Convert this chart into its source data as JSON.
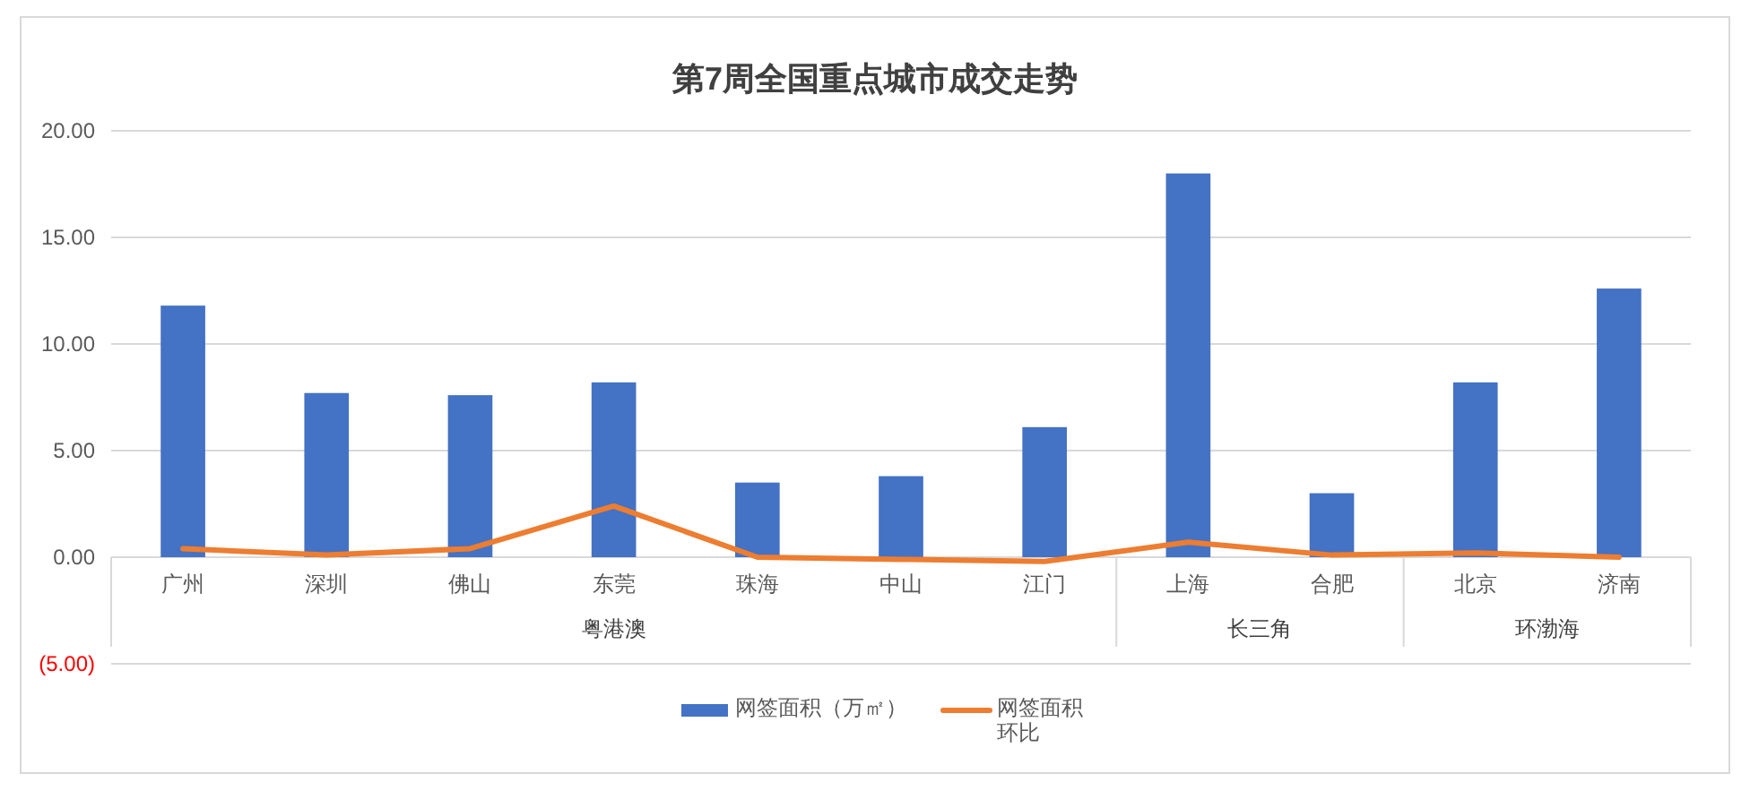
{
  "chart_data": {
    "type": "bar",
    "title": "第7周全国重点城市成交走势",
    "categories": [
      "广州",
      "深圳",
      "佛山",
      "东莞",
      "珠海",
      "中山",
      "江门",
      "上海",
      "合肥",
      "北京",
      "济南"
    ],
    "annotations": [
      "粤港澳",
      "长三角",
      "环渤海"
    ],
    "ref_lines": [
      {
        "axis": "x",
        "value": "上海",
        "color": "#d9d9d9"
      },
      {
        "axis": "x",
        "value": "北京",
        "color": "#d9d9d9"
      }
    ],
    "series": [
      {
        "name": "网签面积（万㎡）",
        "color": "#4472c4",
        "values": [
          11.8,
          7.7,
          7.6,
          8.2,
          3.5,
          3.8,
          6.1,
          18.0,
          3.0,
          8.2,
          12.6
        ]
      },
      {
        "name": "网签面积环比",
        "type": "line",
        "color": "#ed7d31",
        "values": [
          0.4,
          0.1,
          0.4,
          2.4,
          0.0,
          -0.1,
          -0.2,
          0.7,
          0.1,
          0.2,
          0.0
        ]
      }
    ],
    "ylim": [
      -5,
      20
    ],
    "yticks": [
      {
        "value": -5,
        "label": "(5.00)"
      },
      {
        "value": 0,
        "label": "0.00"
      },
      {
        "value": 5,
        "label": "5.00"
      },
      {
        "value": 10,
        "label": "10.00"
      },
      {
        "value": 15,
        "label": "15.00"
      },
      {
        "value": 20,
        "label": "20.00"
      }
    ],
    "grid": "y",
    "legend": "bottom"
  }
}
